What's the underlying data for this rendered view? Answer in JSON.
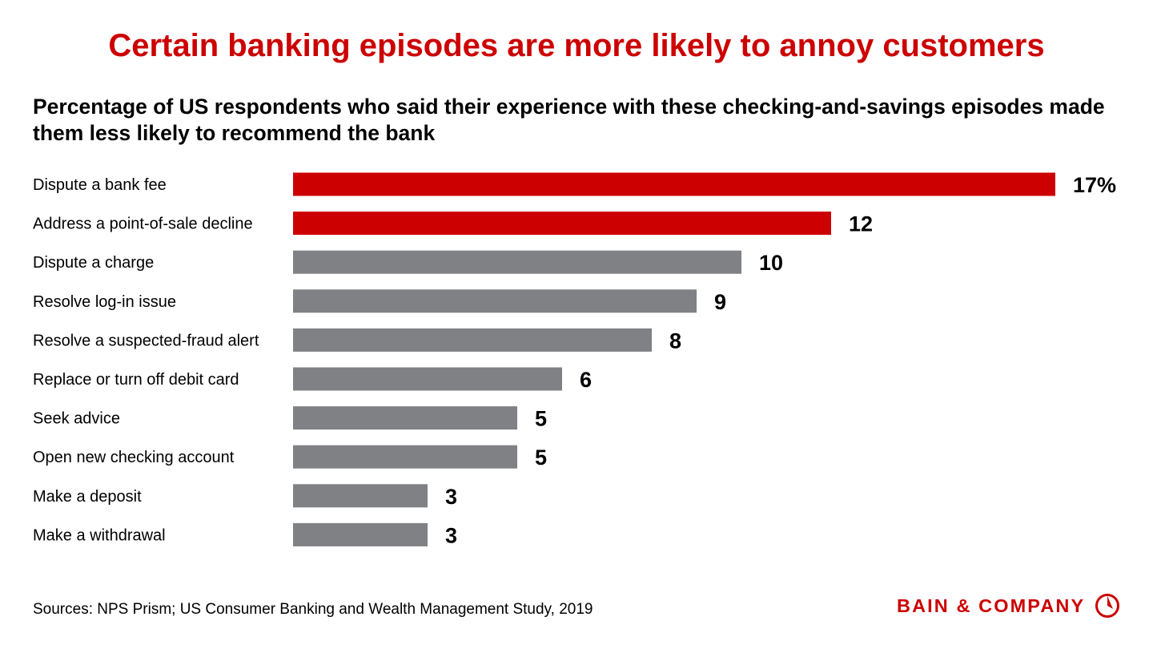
{
  "title": "Certain banking episodes are more likely to annoy customers",
  "subtitle": "Percentage of US respondents who said their experience with these checking-and-savings episodes made them less likely to recommend the bank",
  "source": "Sources: NPS Prism; US Consumer Banking and Wealth Management Study, 2019",
  "logo": {
    "text": "BAIN & COMPANY",
    "icon": "bain-compass-logo-icon"
  },
  "colors": {
    "highlight": "#cc0000",
    "bar": "#808184",
    "title": "#cc0000"
  },
  "chart_data": {
    "type": "bar",
    "orientation": "horizontal",
    "unit": "%",
    "categories": [
      "Dispute a bank fee",
      "Address a point-of-sale decline",
      "Dispute a charge",
      "Resolve log-in issue",
      "Resolve a suspected-fraud alert",
      "Replace or turn off debit card",
      "Seek advice",
      "Open new checking account",
      "Make a deposit",
      "Make a withdrawal"
    ],
    "values": [
      17,
      12,
      10,
      9,
      8,
      6,
      5,
      5,
      3,
      3
    ],
    "value_labels": [
      "17%",
      "12",
      "10",
      "9",
      "8",
      "6",
      "5",
      "5",
      "3",
      "3"
    ],
    "highlighted": [
      true,
      true,
      false,
      false,
      false,
      false,
      false,
      false,
      false,
      false
    ],
    "xlim": [
      0,
      17
    ],
    "axes_visible": false,
    "grid": false,
    "legend": false
  }
}
